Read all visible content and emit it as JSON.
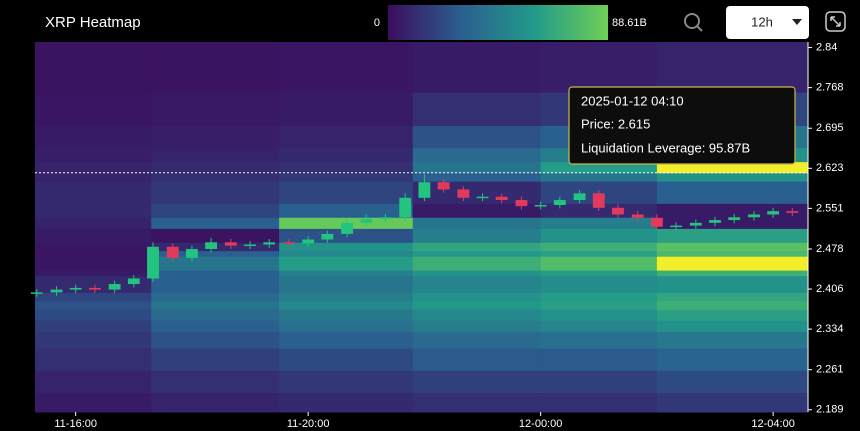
{
  "chart_data": {
    "type": "heatmap-candlestick",
    "title": "XRP Heatmap",
    "colorbar_ticks": [
      0,
      {
        "value": 88.61,
        "label": "88.61B"
      }
    ],
    "colorscale": [
      "#3b0d5e",
      "#2a5f8f",
      "#229a8a",
      "#6fcf55",
      "#f2ee2a"
    ],
    "interval": "12h",
    "xlim": [
      15.3,
      28.6
    ],
    "xticks": [
      {
        "value": 16,
        "label": "11-16:00"
      },
      {
        "value": 20,
        "label": "11-20:00"
      },
      {
        "value": 24,
        "label": "12-00:00"
      },
      {
        "value": 28,
        "label": "12-04:00"
      }
    ],
    "ylim": [
      2.185,
      2.85
    ],
    "yticks": [
      2.84,
      2.768,
      2.695,
      2.623,
      2.551,
      2.478,
      2.406,
      2.334,
      2.261,
      2.189
    ],
    "heatmap": {
      "x_edges": [
        15.3,
        17.3,
        19.5,
        21.8,
        24,
        26,
        28.6
      ],
      "y_edges": [
        2.185,
        2.22,
        2.26,
        2.3,
        2.33,
        2.35,
        2.37,
        2.385,
        2.4,
        2.43,
        2.44,
        2.465,
        2.475,
        2.49,
        2.515,
        2.535,
        2.56,
        2.6,
        2.615,
        2.635,
        2.66,
        2.7,
        2.76,
        2.85
      ],
      "values": [
        [
          5,
          8,
          10,
          12,
          12,
          15
        ],
        [
          8,
          12,
          15,
          18,
          18,
          22
        ],
        [
          12,
          18,
          22,
          28,
          28,
          32
        ],
        [
          15,
          25,
          30,
          35,
          38,
          42
        ],
        [
          18,
          30,
          38,
          45,
          48,
          55
        ],
        [
          22,
          35,
          42,
          50,
          55,
          62
        ],
        [
          25,
          40,
          50,
          58,
          62,
          70
        ],
        [
          20,
          35,
          45,
          55,
          60,
          65
        ],
        [
          10,
          30,
          40,
          48,
          52,
          55
        ],
        [
          5,
          30,
          45,
          55,
          60,
          70
        ],
        [
          3,
          40,
          60,
          70,
          78,
          95
        ],
        [
          3,
          30,
          50,
          58,
          62,
          75
        ],
        [
          3,
          10,
          55,
          65,
          70,
          80
        ],
        [
          5,
          2,
          25,
          45,
          55,
          62
        ],
        [
          8,
          30,
          85,
          40,
          45,
          5
        ],
        [
          10,
          20,
          30,
          5,
          10,
          5
        ],
        [
          10,
          15,
          20,
          10,
          20,
          30
        ],
        [
          8,
          12,
          15,
          30,
          40,
          55
        ],
        [
          8,
          10,
          12,
          40,
          60,
          92
        ],
        [
          6,
          8,
          10,
          35,
          45,
          55
        ],
        [
          5,
          6,
          8,
          25,
          30,
          40
        ],
        [
          3,
          4,
          5,
          12,
          15,
          20
        ],
        [
          2,
          2,
          3,
          5,
          6,
          8
        ]
      ]
    },
    "candles": {
      "up_color": "#22c47f",
      "down_color": "#e23a5c",
      "x": [
        15.33,
        15.67,
        16,
        16.33,
        16.67,
        17,
        17.33,
        17.67,
        18,
        18.33,
        18.67,
        19,
        19.33,
        19.67,
        20,
        20.33,
        20.67,
        21,
        21.33,
        21.67,
        22,
        22.33,
        22.67,
        23,
        23.33,
        23.67,
        24,
        24.33,
        24.67,
        25,
        25.33,
        25.67,
        26,
        26.33,
        26.67,
        27,
        27.33,
        27.67,
        28,
        28.33
      ],
      "open": [
        2.398,
        2.4,
        2.405,
        2.408,
        2.405,
        2.415,
        2.425,
        2.482,
        2.462,
        2.478,
        2.49,
        2.484,
        2.486,
        2.49,
        2.488,
        2.495,
        2.505,
        2.525,
        2.532,
        2.535,
        2.57,
        2.598,
        2.585,
        2.57,
        2.572,
        2.566,
        2.555,
        2.557,
        2.566,
        2.578,
        2.552,
        2.54,
        2.534,
        2.518,
        2.52,
        2.525,
        2.53,
        2.535,
        2.54,
        2.546
      ],
      "high": [
        2.406,
        2.411,
        2.414,
        2.414,
        2.421,
        2.431,
        2.49,
        2.488,
        2.484,
        2.498,
        2.496,
        2.492,
        2.496,
        2.496,
        2.501,
        2.511,
        2.531,
        2.54,
        2.541,
        2.578,
        2.612,
        2.604,
        2.591,
        2.578,
        2.578,
        2.572,
        2.563,
        2.572,
        2.584,
        2.584,
        2.558,
        2.546,
        2.54,
        2.526,
        2.531,
        2.536,
        2.541,
        2.546,
        2.552,
        2.552
      ],
      "low": [
        2.392,
        2.394,
        2.399,
        2.399,
        2.399,
        2.409,
        2.419,
        2.455,
        2.456,
        2.472,
        2.478,
        2.478,
        2.48,
        2.482,
        2.482,
        2.489,
        2.499,
        2.519,
        2.526,
        2.529,
        2.564,
        2.579,
        2.564,
        2.564,
        2.56,
        2.549,
        2.549,
        2.551,
        2.56,
        2.546,
        2.534,
        2.528,
        2.512,
        2.512,
        2.514,
        2.519,
        2.524,
        2.529,
        2.534,
        2.537
      ],
      "close": [
        2.4,
        2.405,
        2.408,
        2.405,
        2.415,
        2.425,
        2.482,
        2.462,
        2.478,
        2.49,
        2.484,
        2.486,
        2.49,
        2.488,
        2.495,
        2.505,
        2.525,
        2.532,
        2.535,
        2.57,
        2.598,
        2.585,
        2.57,
        2.572,
        2.566,
        2.555,
        2.557,
        2.566,
        2.578,
        2.552,
        2.54,
        2.534,
        2.518,
        2.52,
        2.525,
        2.53,
        2.535,
        2.54,
        2.546,
        2.543
      ]
    },
    "crosshair_price": 2.615,
    "tooltip": {
      "time": "2025-01-12 04:10",
      "price": "Price: 2.615",
      "leverage": "Liquidation Leverage: 95.87B"
    }
  }
}
